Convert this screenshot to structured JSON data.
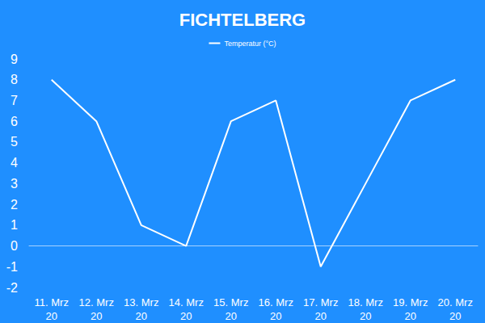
{
  "chart_data": {
    "type": "line",
    "title": "FICHTELBERG",
    "categories": [
      "11. Mrz\n20",
      "12. Mrz\n20",
      "13. Mrz\n20",
      "14. Mrz\n20",
      "15. Mrz\n20",
      "16. Mrz\n20",
      "17. Mrz\n20",
      "18. Mrz\n20",
      "19. Mrz\n20",
      "20. Mrz\n20"
    ],
    "series": [
      {
        "name": "Temperatur (°C)",
        "color": "#ffffff",
        "values": [
          8,
          6,
          1,
          0,
          6,
          7,
          -1,
          3,
          7,
          8
        ]
      }
    ],
    "ylim": [
      -2,
      9
    ],
    "yticks": [
      -2,
      -1,
      0,
      1,
      2,
      3,
      4,
      5,
      6,
      7,
      8,
      9
    ],
    "grid": false,
    "legend": "top"
  }
}
